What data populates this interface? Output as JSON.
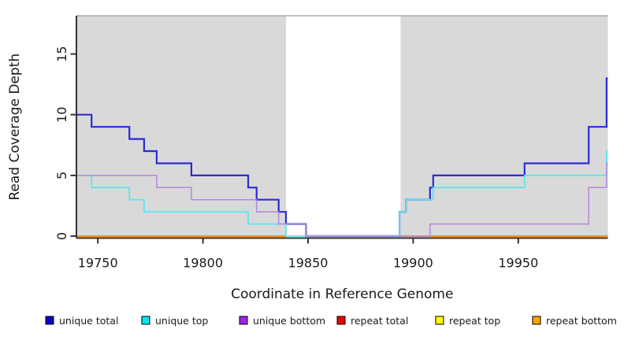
{
  "chart_data": {
    "type": "line",
    "subtype": "step-coverage-plot",
    "title": "",
    "xlabel": "Coordinate in Reference Genome",
    "ylabel": "Read Coverage Depth",
    "xlim": [
      19739.8,
      19992.6
    ],
    "ylim": [
      -0.16,
      18.15
    ],
    "x_ticks": [
      19750,
      19800,
      19850,
      19900,
      19950
    ],
    "y_ticks": [
      0,
      5,
      10,
      15
    ],
    "grid": false,
    "panel_bg": "#d9d9d9",
    "panel_top_border": "#9b9b9b",
    "axis_color": "#333333",
    "gap_region": {
      "x0": 19839.5,
      "x1": 19894,
      "color": "#ffffff"
    },
    "legend_position": "bottom-horizontal",
    "series": [
      {
        "name": "unique total",
        "color": "#2b2bd8",
        "legend_color": "#0000cc",
        "width": 2.2,
        "layer": "fg",
        "points": [
          [
            19739.8,
            10
          ],
          [
            19747,
            9
          ],
          [
            19765,
            8
          ],
          [
            19772,
            7
          ],
          [
            19778,
            6
          ],
          [
            19794.5,
            5
          ],
          [
            19821.5,
            4
          ],
          [
            19825.5,
            3
          ],
          [
            19836,
            2
          ],
          [
            19839.5,
            1
          ],
          [
            19849,
            0
          ],
          [
            19893.5,
            2
          ],
          [
            19896.5,
            3
          ],
          [
            19908,
            4
          ],
          [
            19909.5,
            5
          ],
          [
            19953,
            6
          ],
          [
            19983.5,
            9
          ],
          [
            19992,
            13
          ]
        ]
      },
      {
        "name": "unique top",
        "color": "#5de5ee",
        "legend_color": "#00e5ee",
        "width": 1.8,
        "layer": "fg",
        "points": [
          [
            19739.8,
            5
          ],
          [
            19747,
            4
          ],
          [
            19765,
            3
          ],
          [
            19772,
            2
          ],
          [
            19821.5,
            1
          ],
          [
            19839.5,
            0
          ],
          [
            19893.5,
            2
          ],
          [
            19896.5,
            3
          ],
          [
            19909.5,
            4
          ],
          [
            19953,
            5
          ],
          [
            19992,
            7
          ]
        ]
      },
      {
        "name": "unique bottom",
        "color": "#b288de",
        "legend_color": "#a020f0",
        "width": 1.5,
        "layer": "fg",
        "points": [
          [
            19739.8,
            5
          ],
          [
            19778,
            4
          ],
          [
            19794.5,
            3
          ],
          [
            19825.5,
            2
          ],
          [
            19836,
            1
          ],
          [
            19849,
            0
          ],
          [
            19908,
            1
          ],
          [
            19983.5,
            4
          ],
          [
            19992,
            6
          ]
        ]
      },
      {
        "name": "repeat total",
        "color": "#dd0000",
        "legend_color": "#e60000",
        "width": 1.5,
        "layer": "bg",
        "points": [
          [
            19739.8,
            0
          ]
        ]
      },
      {
        "name": "repeat top",
        "color": "#f2e400",
        "legend_color": "#ffff00",
        "width": 1.5,
        "layer": "bg",
        "points": [
          [
            19739.8,
            0
          ]
        ]
      },
      {
        "name": "repeat bottom",
        "color": "#ff8c00",
        "legend_color": "#ffa300",
        "width": 1.8,
        "layer": "bg",
        "points": [
          [
            19739.8,
            0
          ]
        ]
      }
    ]
  }
}
